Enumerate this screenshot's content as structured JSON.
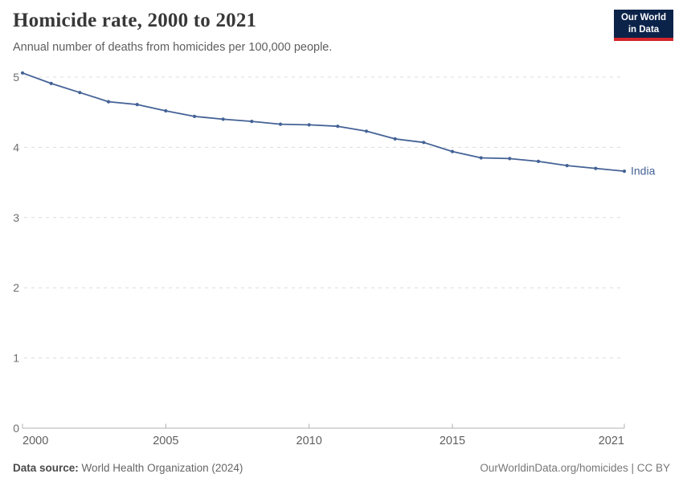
{
  "header": {
    "title": "Homicide rate, 2000 to 2021",
    "subtitle": "Annual number of deaths from homicides per 100,000 people."
  },
  "logo": {
    "line1": "Our World",
    "line2": "in Data",
    "bg_color": "#0b2349",
    "accent_color": "#d4262c"
  },
  "chart_data": {
    "type": "line",
    "title": "Homicide rate, 2000 to 2021",
    "subtitle": "Annual number of deaths from homicides per 100,000 people.",
    "x": [
      2000,
      2001,
      2002,
      2003,
      2004,
      2005,
      2006,
      2007,
      2008,
      2009,
      2010,
      2011,
      2012,
      2013,
      2014,
      2015,
      2016,
      2017,
      2018,
      2019,
      2020,
      2021
    ],
    "series": [
      {
        "name": "India",
        "color": "#446296",
        "values": [
          5.06,
          4.91,
          4.78,
          4.65,
          4.61,
          4.52,
          4.44,
          4.4,
          4.37,
          4.33,
          4.32,
          4.3,
          4.23,
          4.12,
          4.07,
          3.94,
          3.85,
          3.84,
          3.8,
          3.74,
          3.7,
          3.66
        ]
      }
    ],
    "xlabel": "",
    "ylabel": "",
    "ylim": [
      0,
      5
    ],
    "yticks": [
      0,
      1,
      2,
      3,
      4,
      5
    ],
    "xticks": [
      2000,
      2005,
      2010,
      2015,
      2021
    ],
    "grid": "horizontal-dashed",
    "legend": "line-end-label",
    "colors": {
      "gridline": "#dcdcdc",
      "axis": "#b0b0b0",
      "ytick_label": "#6e6e6e",
      "xtick_label": "#5f5f5f"
    }
  },
  "footer": {
    "source_label": "Data source:",
    "source_value": " World Health Organization (2024)",
    "credit": "OurWorldinData.org/homicides | CC BY"
  }
}
